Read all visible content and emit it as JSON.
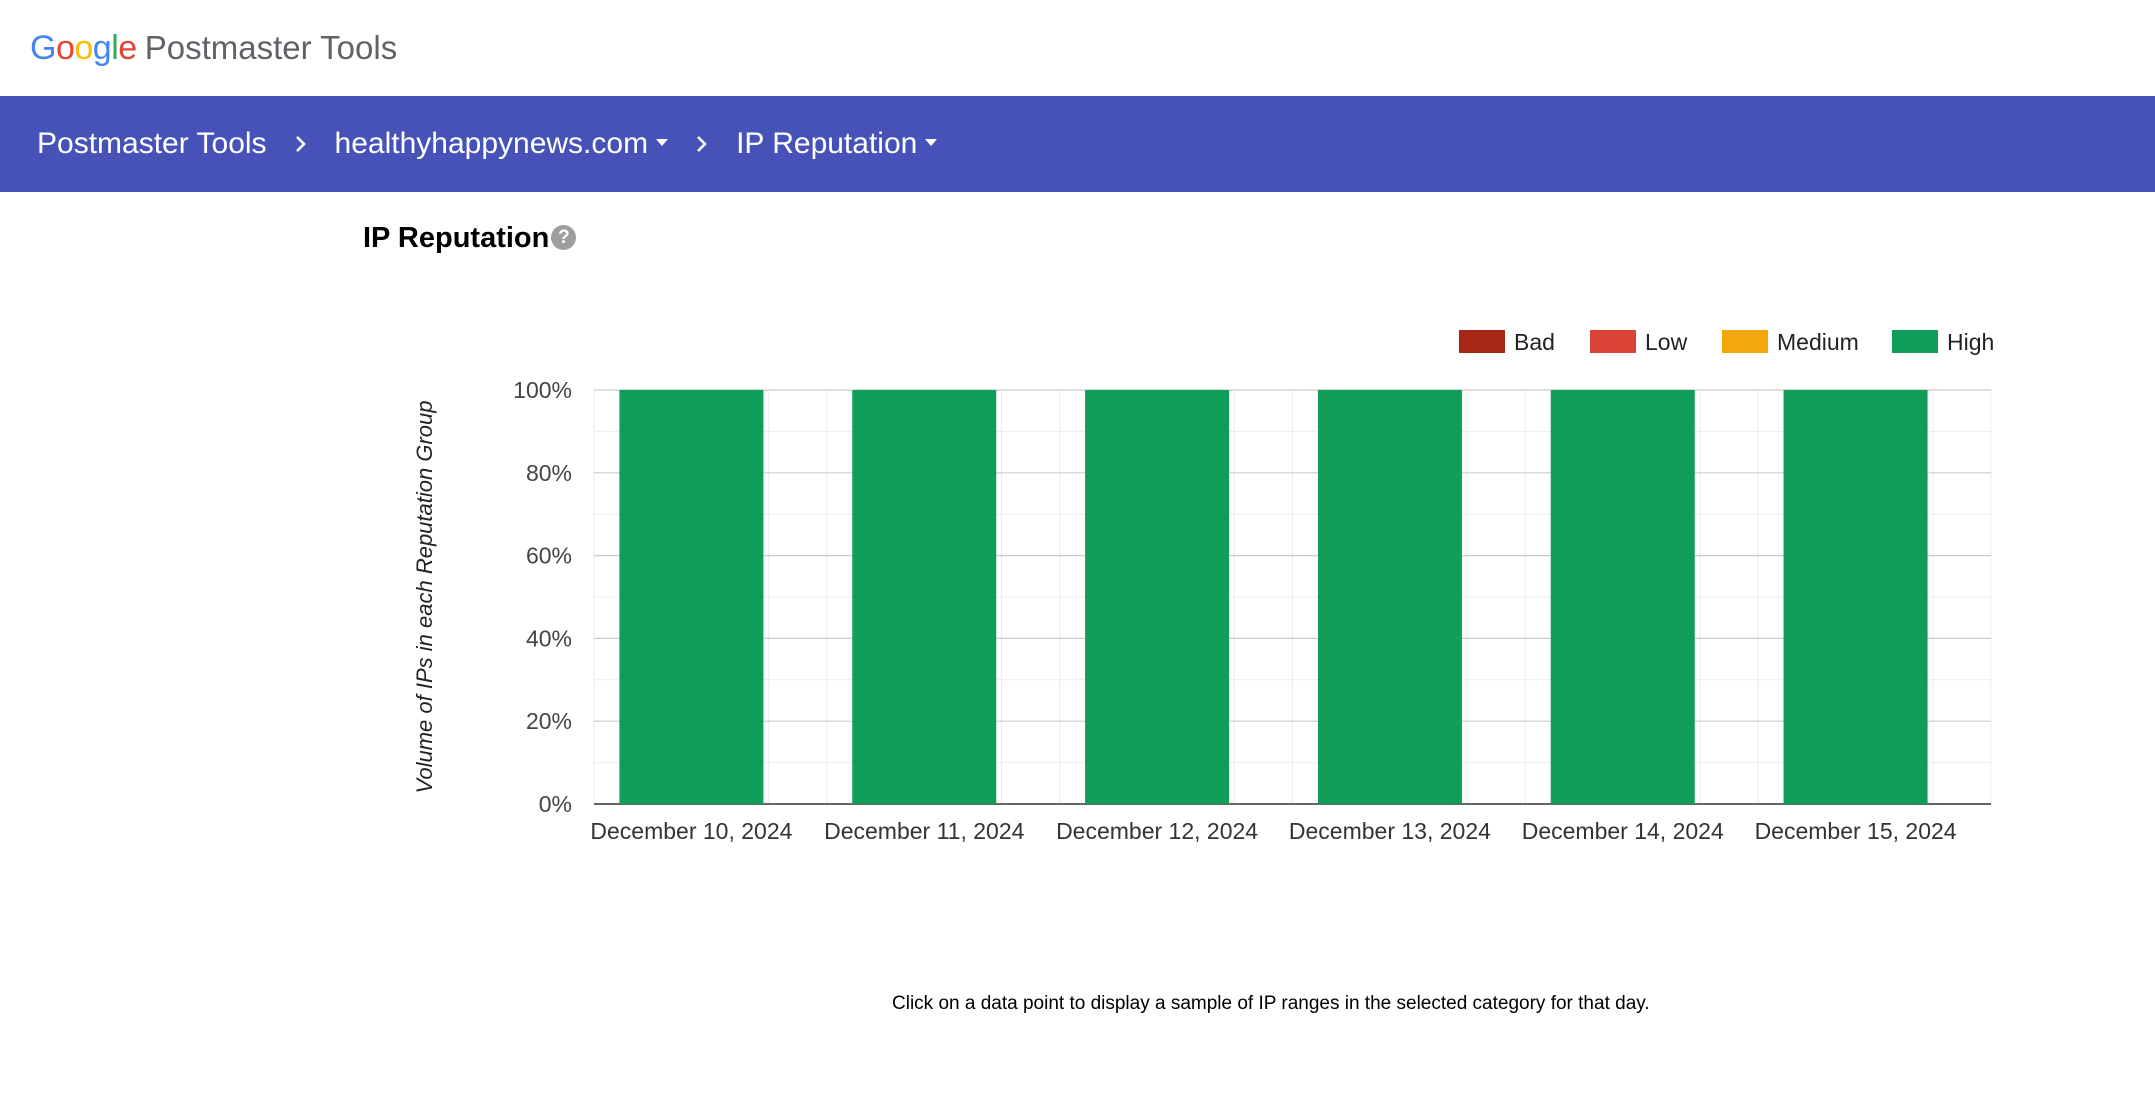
{
  "header": {
    "logo_letters": [
      {
        "ch": "G",
        "color": "#4285F4"
      },
      {
        "ch": "o",
        "color": "#EA4335"
      },
      {
        "ch": "o",
        "color": "#FBBC05"
      },
      {
        "ch": "g",
        "color": "#4285F4"
      },
      {
        "ch": "l",
        "color": "#34A853"
      },
      {
        "ch": "e",
        "color": "#EA4335"
      }
    ],
    "product_name": "Postmaster Tools"
  },
  "breadcrumb": {
    "root": "Postmaster Tools",
    "domain": "healthyhappynews.com",
    "section": "IP Reputation",
    "separator_icon": "chevron-right-icon",
    "dropdown_icon": "caret-down-icon",
    "bar_color": "#4652b8"
  },
  "page": {
    "title": "IP Reputation",
    "help_icon": "help-icon",
    "help_glyph": "?"
  },
  "chart_data": {
    "type": "bar",
    "stacked": true,
    "categories": [
      "December 10, 2024",
      "December 11, 2024",
      "December 12, 2024",
      "December 13, 2024",
      "December 14, 2024",
      "December 15, 2024"
    ],
    "series": [
      {
        "name": "Bad",
        "color": "#a52714",
        "values": [
          0,
          0,
          0,
          0,
          0,
          0
        ]
      },
      {
        "name": "Low",
        "color": "#db4437",
        "values": [
          0,
          0,
          0,
          0,
          0,
          0
        ]
      },
      {
        "name": "Medium",
        "color": "#f4a70b",
        "values": [
          0,
          0,
          0,
          0,
          0,
          0
        ]
      },
      {
        "name": "High",
        "color": "#0f9d58",
        "values": [
          100,
          100,
          100,
          100,
          100,
          100
        ]
      }
    ],
    "ylabel": "Volume of IPs in each Reputation Group",
    "xlabel": "",
    "ylim": [
      0,
      100
    ],
    "yticks": [
      "0%",
      "20%",
      "40%",
      "60%",
      "80%",
      "100%"
    ],
    "grid": true,
    "legend_position": "top-right"
  },
  "footer": {
    "note": "Click on a data point to display a sample of IP ranges in the selected category for that day."
  }
}
